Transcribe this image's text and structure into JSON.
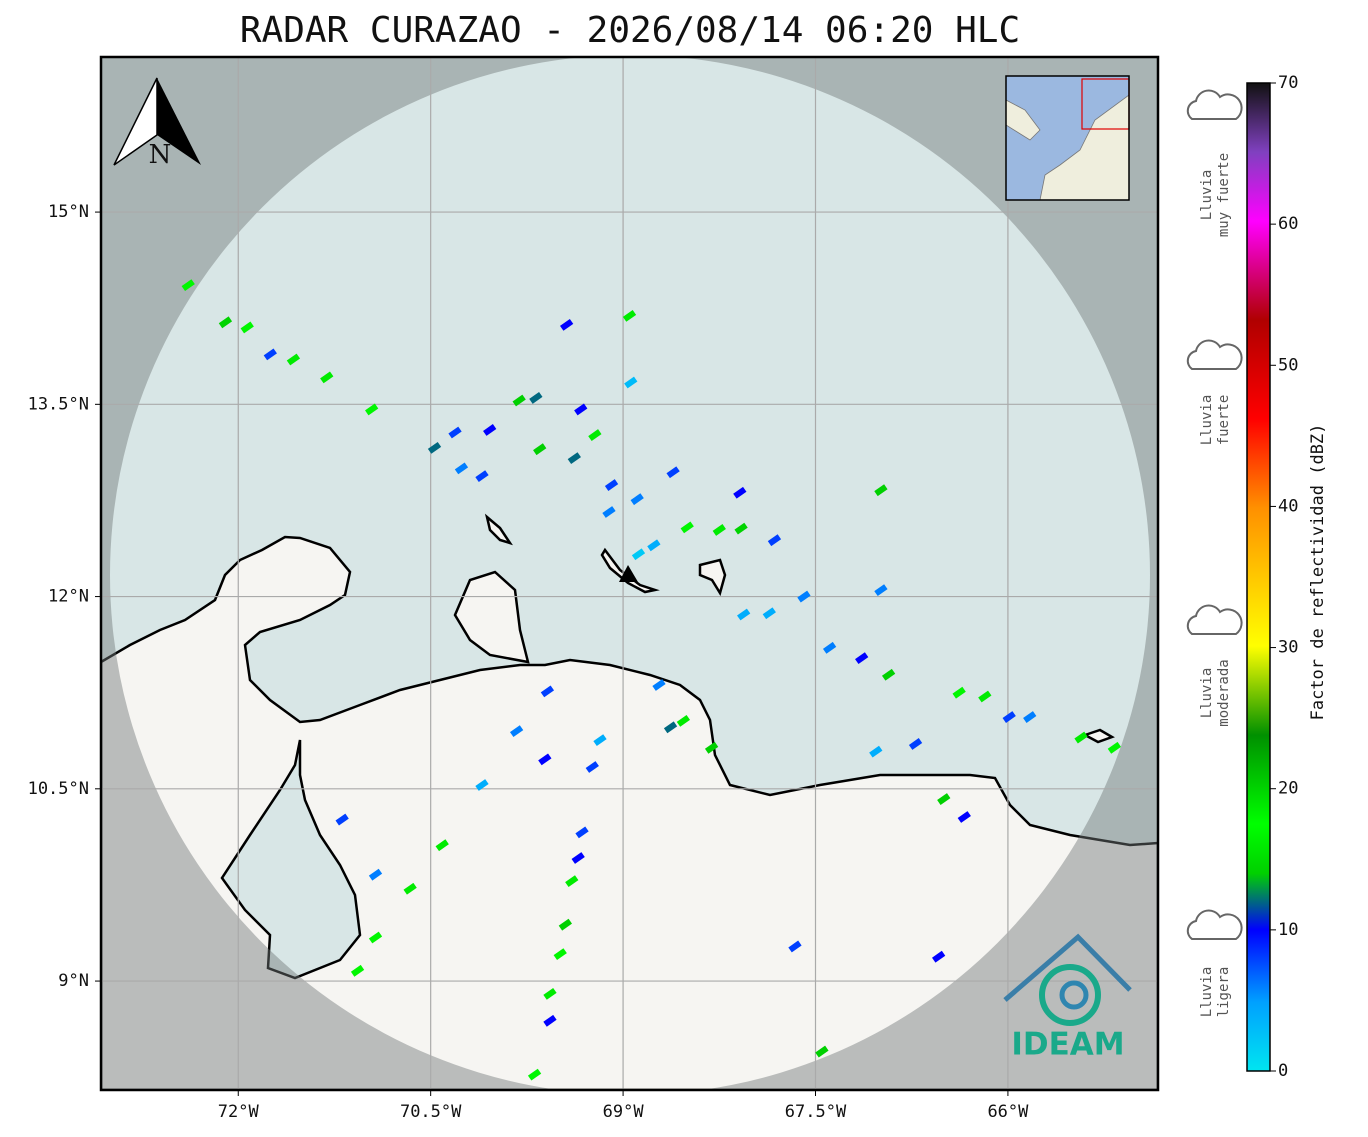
{
  "chart_data": {
    "type": "map",
    "title": "RADAR CURAZAO - 2026/08/14 06:20 HLC",
    "xlim": [
      -73.07,
      -64.83
    ],
    "ylim": [
      8.15,
      16.21
    ],
    "xticks": [
      {
        "value": -72,
        "label": "72°W"
      },
      {
        "value": -70.5,
        "label": "70.5°W"
      },
      {
        "value": -69,
        "label": "69°W"
      },
      {
        "value": -67.5,
        "label": "67.5°W"
      },
      {
        "value": -66,
        "label": "66°W"
      }
    ],
    "yticks": [
      {
        "value": 15,
        "label": "15°N"
      },
      {
        "value": 13.5,
        "label": "13.5°N"
      },
      {
        "value": 12,
        "label": "12°N"
      },
      {
        "value": 10.5,
        "label": "10.5°N"
      },
      {
        "value": 9,
        "label": "9°N"
      }
    ],
    "grid": true,
    "echoes": {
      "lon": [
        -72.39,
        -72.1,
        -71.93,
        -71.75,
        -71.57,
        -71.31,
        -70.96,
        -69.44,
        -68.95,
        -68.94,
        -69.81,
        -69.68,
        -70.04,
        -70.31,
        -70.47,
        -70.26,
        -70.1,
        -69.65,
        -69.38,
        -69.22,
        -69.33,
        -69.09,
        -68.89,
        -69.11,
        -68.88,
        -68.76,
        -68.5,
        -68.25,
        -68.08,
        -67.82,
        -66.99,
        -68.09,
        -68.61,
        -67.59,
        -66.99,
        -67.86,
        -68.06,
        -67.39,
        -67.14,
        -66.93,
        -66.38,
        -66.18,
        -65.99,
        -65.83,
        -65.43,
        -65.17,
        -67.03,
        -66.72,
        -66.5,
        -66.34,
        -68.72,
        -68.63,
        -68.53,
        -68.31,
        -69.59,
        -69.18,
        -69.24,
        -69.61,
        -69.83,
        -70.1,
        -70.41,
        -69.32,
        -69.35,
        -69.4,
        -69.45,
        -69.49,
        -69.57,
        -69.57,
        -69.69,
        -71.19,
        -70.93,
        -70.66,
        -70.93,
        -71.07,
        -67.66,
        -67.45,
        -66.54
      ],
      "lat": [
        14.43,
        14.14,
        14.1,
        13.89,
        13.85,
        13.71,
        13.46,
        14.12,
        14.19,
        13.67,
        13.53,
        13.55,
        13.3,
        13.28,
        13.16,
        13.0,
        12.94,
        13.15,
        13.08,
        13.26,
        13.46,
        12.87,
        12.76,
        12.66,
        12.33,
        12.4,
        12.54,
        12.52,
        12.53,
        12.44,
        12.83,
        12.81,
        12.97,
        12.0,
        12.05,
        11.87,
        11.86,
        11.6,
        11.52,
        11.39,
        11.25,
        11.22,
        11.06,
        11.06,
        10.9,
        10.82,
        10.79,
        10.85,
        10.42,
        10.28,
        11.31,
        10.98,
        11.03,
        10.82,
        11.26,
        10.88,
        10.67,
        10.73,
        10.95,
        10.53,
        10.06,
        10.16,
        9.96,
        9.78,
        9.44,
        9.21,
        8.9,
        8.69,
        8.27,
        10.26,
        9.83,
        9.72,
        9.34,
        9.08,
        9.27,
        8.45,
        9.19
      ],
      "dbz": [
        18,
        20,
        18,
        8,
        16,
        16,
        18,
        10,
        16,
        3,
        14,
        12,
        10,
        8,
        12,
        6,
        8,
        14,
        12,
        16,
        10,
        8,
        6,
        6,
        2,
        4,
        18,
        16,
        20,
        8,
        14,
        10,
        8,
        6,
        6,
        4,
        4,
        6,
        10,
        14,
        18,
        16,
        8,
        6,
        16,
        18,
        4,
        8,
        14,
        10,
        6,
        12,
        16,
        14,
        8,
        4,
        8,
        10,
        6,
        4,
        16,
        8,
        10,
        16,
        14,
        18,
        16,
        10,
        18,
        8,
        6,
        16,
        18,
        18,
        8,
        14,
        10
      ]
    },
    "colorbar": {
      "label": "Factor de reflectividad (dBZ)",
      "lim": [
        0,
        70
      ],
      "ticks": [
        0,
        10,
        20,
        30,
        40,
        50,
        60,
        70
      ]
    },
    "legend": [
      [
        "Lluvia",
        "muy fuerte"
      ],
      [
        "Lluvia",
        "fuerte"
      ],
      [
        "Lluvia",
        "moderada"
      ],
      [
        "Lluvia",
        "ligera"
      ]
    ],
    "north_label": "N",
    "logo_text": "IDEAM"
  }
}
